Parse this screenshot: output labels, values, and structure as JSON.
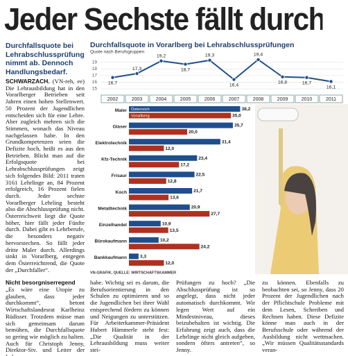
{
  "article": {
    "headline": "Jeder Sechste fällt durch",
    "lead": "Durchfallsquote bei Lehrabschlussprüfungen nimmt ab. Dennoch Handlungsbedarf.",
    "dateline": "SCHWARZACH.",
    "intro": "(VN-reh, ee) Die Lehrausbildung hat in den Vorarlberger Betrieben seit Jahren einen hohen Stellenwert. 50 Prozent der Jugendlichen entscheiden sich für eine Lehre. Aber zugleich mehren sich die Stimmen, wonach das Niveau nachgelassen habe. In den Grundkompetenzen seien die Defizite hoch, heißt es aus den Betrieben. Blickt man auf die Erfolgsquote bei Lehrabschlussprüfungen zeigt sich folgendes Bild: 2011 traten 3161 Lehrlinge an, 84 Prozent erfolgreich, 16 Prozent fielen durch. Jeder sechste Vorarlberger Lehrling besteht also die Abschlussprüfung nicht. Österreichweit liegt die Quote höher, hier fällt jeder Fünfte durch. Dabei gibt es Lehrberufe, die besonders negativ hervorstechen. So fällt jeder dritte Maler durch. Allerdings sinkt in Vorarlberg, entgegen dem Österreichtrend, die Quote der „Durchfaller“.",
    "subhead": "Nicht besorgniserregend",
    "continued": "„Es wäre eine Utopie zu glauben, dass jeder durchkommt“, betont Wirtschaftslandesrat Karlheinz Rüdisser. Trotzdem müsse man sich gemeinsam darum bemühen, die Durchfallsquote so gering wie möglich zu halten. Auch für Christoph Jenny, Direktor-Stv. und Leiter der Lehr-",
    "columns": [
      "habe. Wichtig sei es darum, die Berufsorientierung in den Schulen zu optimieren und so die Jugendlichen bei ihrer Wahl entsprechend fördern zu können und Neigungen zu unterstützen. Für Arbeiterkammer-Präsident Hubert Hämmerle steht fest: „Die Qualität in der Lehrausbildung muss weiter stei-",
      "Prüfungen zu hoch? „Die Abschlussprüfung ist so angelegt, dass nicht jeder automatisch durchkommt. Wir legen Wert auf ein Mindestniveau, dieses beizubehalten ist wichtig. Die Erfahrung zeigt auch, dass die Lehrlinge nicht gleich aufgeben, sondern öfters antreten“, so Jenny.",
      "zu können. Ebenfalls zu beobachten sei, so Jenny, dass 20 Prozent der Jugendlichen nach der Pflichtschule Probleme mit dem Lesen, Schreiben und Rechnen haben. Diese Defizite könne man auch in der Berufsschule oder während der Ausbildung nicht wettmachen. „Wir müssen Qualitätsstandards veran-"
    ]
  },
  "chart_data": [
    {
      "type": "line",
      "title": "Durchfallsquote in Vorarlberg bei Lehrabschlussprüfungen",
      "subtitle": "Quote nach Berufsgruppen",
      "categories": [
        "2002",
        "2003",
        "2004",
        "2005",
        "2006",
        "2007",
        "2008",
        "2009",
        "2010",
        "2011"
      ],
      "values": [
        16.7,
        17.3,
        19.2,
        18.7,
        19.3,
        16.4,
        19.4,
        16.8,
        16.7,
        16.1
      ],
      "value_labels": [
        "16,7",
        "17,3",
        "19,2",
        "18,7",
        "19,3",
        "16,4",
        "19,4",
        "16,8",
        "16,7",
        "16,1"
      ],
      "color": "#1f4e8c",
      "ylim": [
        15,
        19.6
      ],
      "yticks": [
        15,
        16,
        17,
        18,
        19
      ],
      "grid": true
    },
    {
      "type": "hbar",
      "source": "VN-GRAFIK, QUELLE: WIRTSCHAFTSKAMMER",
      "categories": [
        "Maler",
        "Glaser",
        "Elektrotechnik",
        "Kfz-Technik",
        "Frisaur",
        "Koch",
        "Metalltechnik",
        "Einzelhandel",
        "Bürokaufmann",
        "Bankkaufmann"
      ],
      "series": [
        {
          "name": "Österreich",
          "color": "#1f4e8c",
          "values": [
            38.2,
            35.7,
            31.4,
            23.4,
            22.5,
            21.7,
            20.9,
            10.9,
            10.2,
            3.3
          ],
          "value_labels": [
            "38,2",
            "35,7",
            "31,4",
            "23,4",
            "22,5",
            "21,7",
            "20,9",
            "10,9",
            "10,2",
            "3,3"
          ]
        },
        {
          "name": "Vorarlberg",
          "color": "#b0301f",
          "values": [
            35.0,
            20.0,
            12.0,
            17.2,
            12.8,
            13.6,
            27.7,
            13.5,
            24.2,
            12.0
          ],
          "value_labels": [
            "35,0",
            "20,0",
            "12,0",
            "17,2",
            "12,8",
            "13,6",
            "27,7",
            "13,5",
            "24,2",
            "12,0"
          ]
        }
      ],
      "xlim": [
        0,
        40
      ]
    }
  ]
}
